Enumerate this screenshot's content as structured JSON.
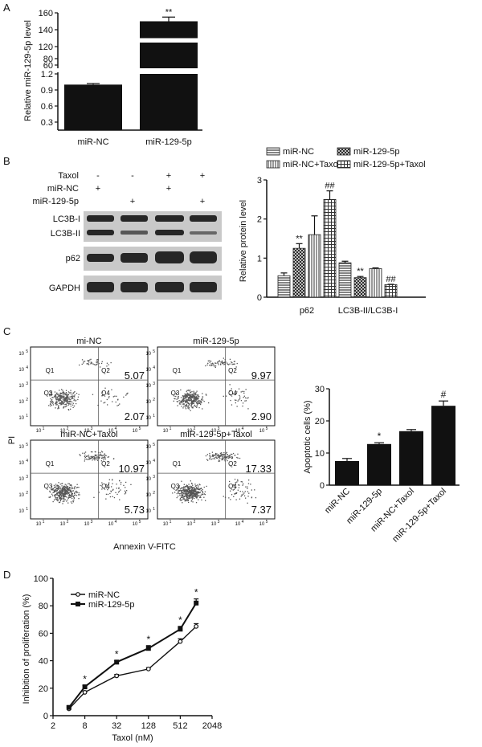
{
  "panel_labels": [
    "A",
    "B",
    "C",
    "D"
  ],
  "blot": {
    "rows": [
      {
        "label": "Taxol",
        "marks": [
          "-",
          "-",
          "+",
          "+"
        ]
      },
      {
        "label": "miR-NC",
        "marks": [
          "+",
          "",
          "+",
          ""
        ]
      },
      {
        "label": "miR-129-5p",
        "marks": [
          "",
          "+",
          "",
          "+"
        ]
      }
    ],
    "bands": [
      "LC3B-I",
      "LC3B-II",
      "p62",
      "GAPDH"
    ]
  },
  "flow": {
    "plots": [
      {
        "title": "mi-NC",
        "ur": "5.07",
        "lr": "2.07"
      },
      {
        "title": "miR-129-5p",
        "ur": "9.97",
        "lr": "2.90"
      },
      {
        "title": "miR-NC+Taxol",
        "ur": "10.97",
        "lr": "5.73"
      },
      {
        "title": "miR-129-5p+Taxol",
        "ur": "17.33",
        "lr": "7.37"
      }
    ],
    "quadrants": [
      "Q1",
      "Q2",
      "Q3",
      "Q4"
    ],
    "ylabel": "PI",
    "xlabel": "Annexin V-FITC",
    "tick_labels": [
      "10",
      "10",
      "10",
      "10",
      "10"
    ],
    "tick_exps": [
      "1",
      "2",
      "3",
      "4",
      "5"
    ]
  },
  "chart_data": [
    {
      "type": "bar",
      "panel": "A",
      "categories": [
        "miR-NC",
        "miR-129-5p"
      ],
      "values": [
        1.0,
        150
      ],
      "errors": [
        0.02,
        5
      ],
      "annotations": [
        "",
        "**"
      ],
      "ylabel": "Relative miR-129-5p level",
      "ylim": [
        0.15,
        160
      ],
      "axis_break": true,
      "yticks_lower": [
        "0.3",
        "0.6",
        "0.9",
        "1.2"
      ],
      "yticks_upper": [
        "60",
        "80",
        "120",
        "140",
        "160"
      ]
    },
    {
      "type": "bar",
      "panel": "B",
      "categories": [
        "p62",
        "LC3B-II/LC3B-I"
      ],
      "series": [
        {
          "name": "miR-NC",
          "values": [
            0.55,
            0.88
          ],
          "errors": [
            0.07,
            0.04
          ]
        },
        {
          "name": "miR-129-5p",
          "values": [
            1.25,
            0.5
          ],
          "errors": [
            0.12,
            0.03
          ]
        },
        {
          "name": "miR-NC+Taxol",
          "values": [
            1.6,
            0.73
          ],
          "errors": [
            0.48,
            0.02
          ]
        },
        {
          "name": "miR-129-5p+Taxol",
          "values": [
            2.5,
            0.32
          ],
          "errors": [
            0.22,
            0.01
          ]
        }
      ],
      "annotations": [
        [
          "",
          "**",
          "",
          "##"
        ],
        [
          "",
          "**",
          "",
          "##"
        ]
      ],
      "ylabel": "Relative protein level",
      "ylim": [
        0,
        3
      ],
      "yticks": [
        "0",
        "1",
        "2",
        "3"
      ],
      "legend_placement": "top"
    },
    {
      "type": "bar",
      "panel": "C",
      "categories": [
        "miR-NC",
        "miR-129-5p",
        "miR-NC+Taxol",
        "miR-129-5p+Taxol"
      ],
      "values": [
        7.5,
        12.8,
        16.8,
        24.7
      ],
      "errors": [
        0.8,
        0.4,
        0.5,
        1.5
      ],
      "annotations": [
        "",
        "*",
        "",
        "#"
      ],
      "ylabel": "Apoptotic cells (%)",
      "ylim": [
        0,
        30
      ],
      "yticks": [
        "0",
        "10",
        "20",
        "30"
      ]
    },
    {
      "type": "line",
      "panel": "D",
      "x": [
        4,
        8,
        32,
        128,
        512,
        1024
      ],
      "series": [
        {
          "name": "miR-NC",
          "values": [
            5,
            17,
            29,
            34,
            54,
            65
          ],
          "errors": [
            1,
            1,
            1,
            1,
            2,
            2
          ]
        },
        {
          "name": "miR-129-5p",
          "values": [
            6,
            21,
            39,
            49,
            63,
            82
          ],
          "errors": [
            1,
            1,
            1,
            2,
            2,
            3
          ]
        }
      ],
      "annotations": [
        "",
        "*",
        "*",
        "*",
        "*",
        "*"
      ],
      "xlabel": "Taxol (nM)",
      "ylabel": "Inhibition of proliferation (%)",
      "xscale": "log2",
      "xticks": [
        "2",
        "8",
        "32",
        "128",
        "512",
        "2048"
      ],
      "yticks": [
        "0",
        "20",
        "40",
        "60",
        "80",
        "100"
      ],
      "ylim": [
        0,
        100
      ],
      "legend_placement": "top-left"
    }
  ]
}
